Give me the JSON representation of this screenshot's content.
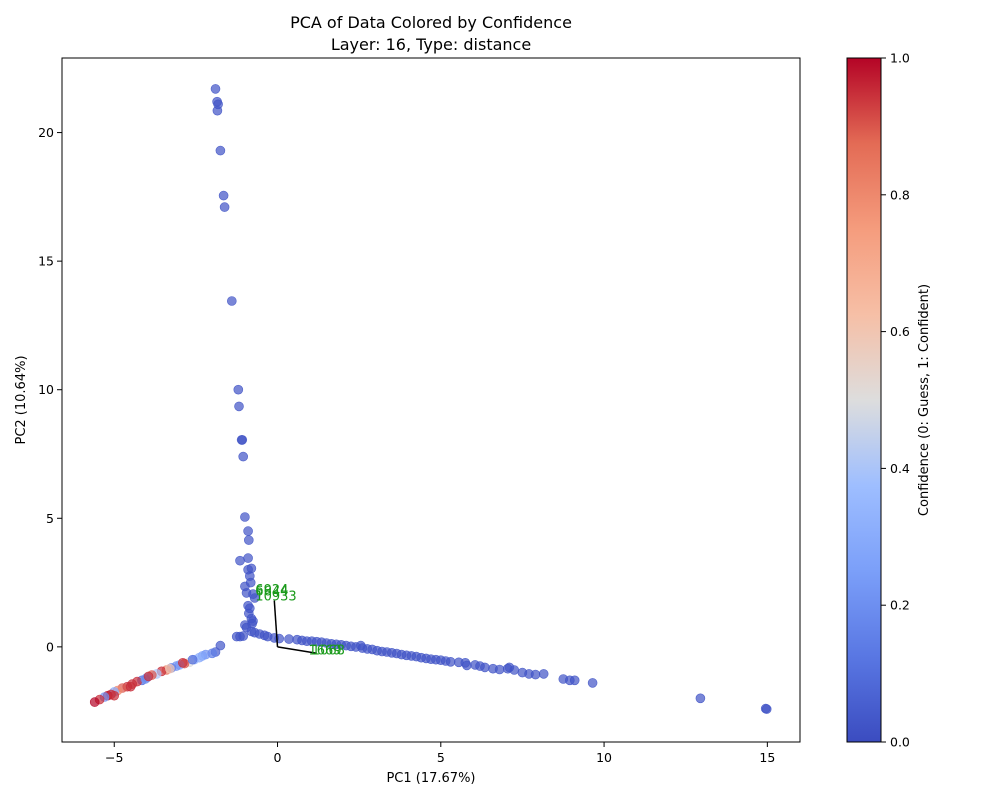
{
  "chart_data": {
    "type": "scatter",
    "title": "PCA of Data Colored by Confidence",
    "subtitle": "Layer: 16, Type: distance",
    "xlabel": "PC1 (17.67%)",
    "ylabel": "PC2 (10.64%)",
    "xlim": [
      -6.6,
      16.0
    ],
    "ylim": [
      -3.7,
      22.9
    ],
    "xticks": [
      -5,
      0,
      5,
      10,
      15
    ],
    "yticks": [
      0,
      5,
      10,
      15,
      20
    ],
    "grid": false,
    "colormap": "coolwarm",
    "colorbar": {
      "label": "Confidence (0: Guess, 1: Confident)",
      "range": [
        0.0,
        1.0
      ],
      "ticks": [
        "0.0",
        "0.2",
        "0.4",
        "0.6",
        "0.8",
        "1.0"
      ],
      "low_color": "#3b4cc0",
      "mid_color": "#dddddd",
      "high_color": "#b40426"
    },
    "point_alpha": 0.7,
    "points": [
      [
        -1.9,
        21.7,
        0.02
      ],
      [
        -1.85,
        21.2,
        0.02
      ],
      [
        -1.82,
        21.1,
        0.02
      ],
      [
        -1.84,
        20.85,
        0.02
      ],
      [
        -1.75,
        19.3,
        0.02
      ],
      [
        -1.65,
        17.55,
        0.02
      ],
      [
        -1.62,
        17.1,
        0.02
      ],
      [
        -1.4,
        13.45,
        0.02
      ],
      [
        -1.2,
        10.0,
        0.02
      ],
      [
        -1.18,
        9.35,
        0.02
      ],
      [
        -1.1,
        8.05,
        0.02
      ],
      [
        -1.08,
        8.05,
        0.02
      ],
      [
        -1.05,
        7.4,
        0.02
      ],
      [
        -1.0,
        5.05,
        0.02
      ],
      [
        -0.9,
        4.5,
        0.02
      ],
      [
        -0.88,
        4.15,
        0.02
      ],
      [
        -0.9,
        3.45,
        0.02
      ],
      [
        -1.15,
        3.35,
        0.02
      ],
      [
        -0.8,
        3.05,
        0.02
      ],
      [
        -0.9,
        3.0,
        0.02
      ],
      [
        -0.85,
        2.75,
        0.02
      ],
      [
        -0.82,
        2.5,
        0.02
      ],
      [
        -1.0,
        2.35,
        0.02
      ],
      [
        -0.95,
        2.1,
        0.02
      ],
      [
        -0.75,
        2.05,
        0.02
      ],
      [
        -0.7,
        1.9,
        0.02
      ],
      [
        -0.9,
        1.6,
        0.02
      ],
      [
        -0.85,
        1.5,
        0.02
      ],
      [
        -0.88,
        1.3,
        0.02
      ],
      [
        -0.8,
        1.1,
        0.02
      ],
      [
        -0.75,
        1.0,
        0.02
      ],
      [
        -0.78,
        0.9,
        0.02
      ],
      [
        -1.0,
        0.85,
        0.02
      ],
      [
        -0.95,
        0.75,
        0.02
      ],
      [
        -0.8,
        0.6,
        0.02
      ],
      [
        -0.7,
        0.55,
        0.02
      ],
      [
        -0.55,
        0.5,
        0.02
      ],
      [
        -0.4,
        0.45,
        0.02
      ],
      [
        -1.25,
        0.4,
        0.02
      ],
      [
        -1.15,
        0.4,
        0.02
      ],
      [
        -1.05,
        0.42,
        0.02
      ],
      [
        -0.3,
        0.4,
        0.02
      ],
      [
        -0.1,
        0.35,
        0.02
      ],
      [
        0.05,
        0.32,
        0.02
      ],
      [
        0.35,
        0.3,
        0.02
      ],
      [
        0.6,
        0.28,
        0.02
      ],
      [
        0.75,
        0.25,
        0.02
      ],
      [
        0.9,
        0.22,
        0.02
      ],
      [
        1.05,
        0.22,
        0.02
      ],
      [
        1.2,
        0.2,
        0.02
      ],
      [
        1.35,
        0.18,
        0.02
      ],
      [
        1.5,
        0.15,
        0.02
      ],
      [
        1.65,
        0.12,
        0.02
      ],
      [
        1.8,
        0.1,
        0.02
      ],
      [
        1.95,
        0.08,
        0.02
      ],
      [
        2.1,
        0.05,
        0.02
      ],
      [
        2.25,
        0.02,
        0.02
      ],
      [
        2.4,
        0.0,
        0.02
      ],
      [
        2.55,
        0.05,
        0.02
      ],
      [
        2.6,
        -0.05,
        0.02
      ],
      [
        2.75,
        -0.08,
        0.02
      ],
      [
        2.9,
        -0.1,
        0.02
      ],
      [
        3.05,
        -0.15,
        0.02
      ],
      [
        3.2,
        -0.18,
        0.02
      ],
      [
        3.35,
        -0.2,
        0.02
      ],
      [
        3.5,
        -0.23,
        0.02
      ],
      [
        3.65,
        -0.26,
        0.02
      ],
      [
        3.8,
        -0.3,
        0.02
      ],
      [
        3.95,
        -0.33,
        0.02
      ],
      [
        4.1,
        -0.35,
        0.02
      ],
      [
        4.25,
        -0.38,
        0.02
      ],
      [
        4.4,
        -0.42,
        0.02
      ],
      [
        4.55,
        -0.45,
        0.02
      ],
      [
        4.7,
        -0.48,
        0.02
      ],
      [
        4.85,
        -0.5,
        0.02
      ],
      [
        5.0,
        -0.52,
        0.02
      ],
      [
        5.15,
        -0.55,
        0.02
      ],
      [
        5.3,
        -0.58,
        0.02
      ],
      [
        5.55,
        -0.6,
        0.02
      ],
      [
        5.75,
        -0.62,
        0.02
      ],
      [
        5.8,
        -0.72,
        0.02
      ],
      [
        6.05,
        -0.7,
        0.02
      ],
      [
        6.2,
        -0.75,
        0.02
      ],
      [
        6.35,
        -0.8,
        0.02
      ],
      [
        6.6,
        -0.85,
        0.02
      ],
      [
        6.8,
        -0.88,
        0.02
      ],
      [
        7.05,
        -0.85,
        0.02
      ],
      [
        7.1,
        -0.8,
        0.02
      ],
      [
        7.25,
        -0.9,
        0.02
      ],
      [
        7.5,
        -1.0,
        0.02
      ],
      [
        7.7,
        -1.05,
        0.02
      ],
      [
        7.9,
        -1.08,
        0.02
      ],
      [
        8.15,
        -1.05,
        0.02
      ],
      [
        8.75,
        -1.25,
        0.02
      ],
      [
        8.95,
        -1.3,
        0.02
      ],
      [
        9.1,
        -1.3,
        0.02
      ],
      [
        9.65,
        -1.4,
        0.02
      ],
      [
        12.95,
        -2.0,
        0.02
      ],
      [
        14.95,
        -2.4,
        0.02
      ],
      [
        14.98,
        -2.42,
        0.02
      ],
      [
        -1.75,
        0.05,
        0.03
      ],
      [
        -1.9,
        -0.2,
        0.05
      ],
      [
        -2.0,
        -0.25,
        0.15
      ],
      [
        -2.2,
        -0.3,
        0.2
      ],
      [
        -2.3,
        -0.35,
        0.25
      ],
      [
        -2.4,
        -0.42,
        0.3
      ],
      [
        -2.55,
        -0.5,
        0.35
      ],
      [
        -2.7,
        -0.6,
        0.5
      ],
      [
        -2.85,
        -0.65,
        0.9
      ],
      [
        -3.0,
        -0.7,
        0.3
      ],
      [
        -3.1,
        -0.75,
        0.2
      ],
      [
        -3.25,
        -0.82,
        0.15
      ],
      [
        -3.4,
        -0.9,
        0.85
      ],
      [
        -3.55,
        -0.95,
        0.95
      ],
      [
        -3.7,
        -1.05,
        0.4
      ],
      [
        -3.85,
        -1.1,
        0.9
      ],
      [
        -4.0,
        -1.2,
        0.3
      ],
      [
        -4.15,
        -1.3,
        0.1
      ],
      [
        -4.3,
        -1.35,
        0.95
      ],
      [
        -4.45,
        -1.45,
        0.95
      ],
      [
        -4.6,
        -1.55,
        0.95
      ],
      [
        -4.75,
        -1.6,
        0.9
      ],
      [
        -4.9,
        -1.7,
        0.8
      ],
      [
        -5.0,
        -1.75,
        0.3
      ],
      [
        -5.1,
        -1.85,
        0.95
      ],
      [
        -5.2,
        -1.9,
        0.98
      ],
      [
        -5.3,
        -1.95,
        0.2
      ],
      [
        -5.45,
        -2.05,
        0.95
      ],
      [
        -5.6,
        -2.15,
        1.0
      ],
      [
        -5.0,
        -1.9,
        0.95
      ],
      [
        -4.5,
        -1.55,
        0.95
      ],
      [
        -3.3,
        -0.85,
        0.6
      ],
      [
        -2.9,
        -0.62,
        0.95
      ],
      [
        -2.6,
        -0.5,
        0.1
      ],
      [
        -4.05,
        -1.25,
        0.2
      ],
      [
        -3.95,
        -1.15,
        0.95
      ]
    ],
    "line_segments": [
      [
        [
          -0.1,
          1.8
        ],
        [
          0.0,
          0.0
        ]
      ],
      [
        [
          0.0,
          0.0
        ],
        [
          1.2,
          -0.25
        ]
      ]
    ],
    "annotations": [
      {
        "text": "6924",
        "x": -0.68,
        "y": 2.05
      },
      {
        "text": "6644",
        "x": -0.68,
        "y": 2.0
      },
      {
        "text": "10933",
        "x": -0.68,
        "y": 1.8
      },
      {
        "text": "1669",
        "x": 0.95,
        "y": -0.3
      },
      {
        "text": "1068",
        "x": 1.05,
        "y": -0.3
      }
    ]
  }
}
